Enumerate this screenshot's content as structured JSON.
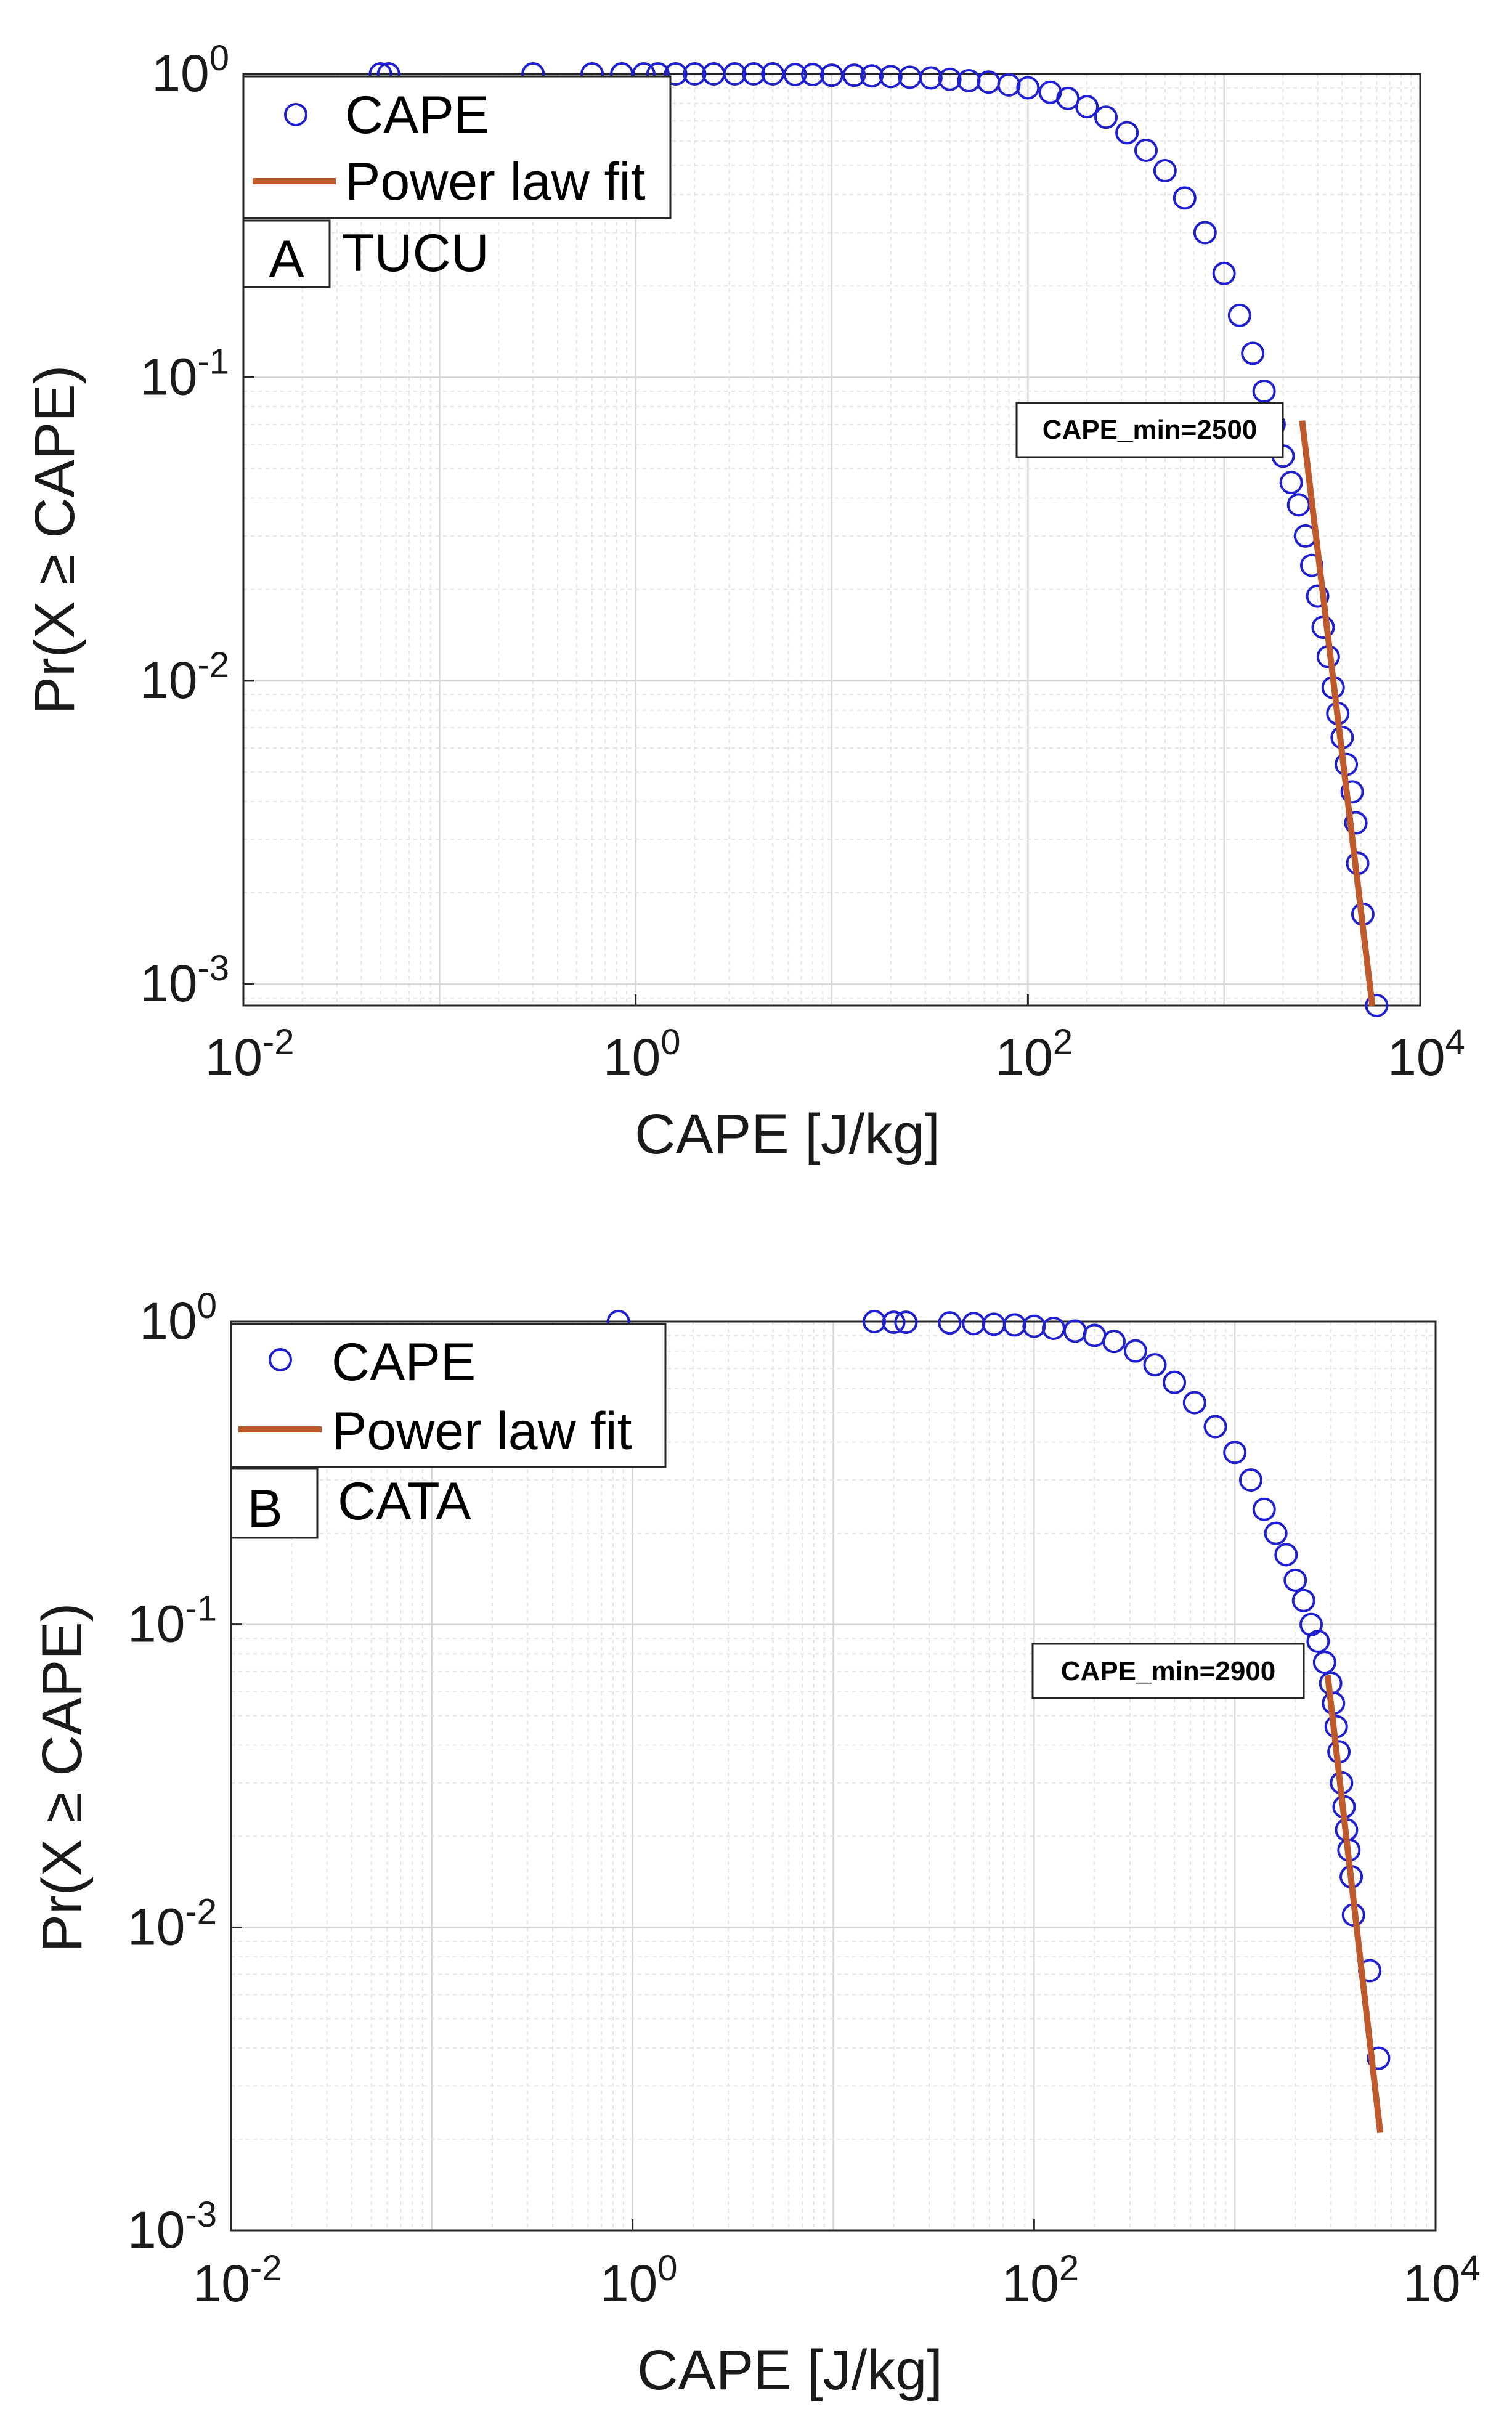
{
  "chart_data": [
    {
      "type": "scatter",
      "panel": "A",
      "station": "TUCU",
      "xlabel": "CAPE [J/kg]",
      "ylabel": "Pr(X ≥ CAPE)",
      "xscale": "log",
      "yscale": "log",
      "xlim": [
        0.01,
        10000
      ],
      "ylim": [
        0.00085,
        1
      ],
      "x_ticks": [
        {
          "base": "10",
          "exp": "-2"
        },
        {
          "base": "10",
          "exp": "0"
        },
        {
          "base": "10",
          "exp": "2"
        },
        {
          "base": "10",
          "exp": "4"
        }
      ],
      "y_ticks": [
        {
          "base": "10",
          "exp": "0",
          "value": 1
        },
        {
          "base": "10",
          "exp": "-1",
          "value": 0.1
        },
        {
          "base": "10",
          "exp": "-2",
          "value": 0.01
        },
        {
          "base": "10",
          "exp": "-3",
          "value": 0.001
        }
      ],
      "grid": true,
      "legend": {
        "position": "top-left",
        "entries": [
          "CAPE",
          "Power law fit"
        ]
      },
      "annotation": "CAPE_min=2500",
      "series": [
        {
          "name": "CAPE",
          "kind": "markers",
          "color": "#1f1fd0",
          "points": [
            [
              0.05,
              1.0
            ],
            [
              0.055,
              1.0
            ],
            [
              0.3,
              1.0
            ],
            [
              0.6,
              1.0
            ],
            [
              0.85,
              1.0
            ],
            [
              1.1,
              1.0
            ],
            [
              1.3,
              1.0
            ],
            [
              1.6,
              1.0
            ],
            [
              2.0,
              1.0
            ],
            [
              2.5,
              1.0
            ],
            [
              3.2,
              1.0
            ],
            [
              4.0,
              1.0
            ],
            [
              5.0,
              1.0
            ],
            [
              6.5,
              0.995
            ],
            [
              8,
              0.995
            ],
            [
              10,
              0.99
            ],
            [
              13,
              0.99
            ],
            [
              16,
              0.985
            ],
            [
              20,
              0.98
            ],
            [
              25,
              0.975
            ],
            [
              32,
              0.97
            ],
            [
              40,
              0.96
            ],
            [
              50,
              0.95
            ],
            [
              63,
              0.94
            ],
            [
              80,
              0.92
            ],
            [
              100,
              0.9
            ],
            [
              130,
              0.87
            ],
            [
              160,
              0.83
            ],
            [
              200,
              0.78
            ],
            [
              250,
              0.72
            ],
            [
              320,
              0.64
            ],
            [
              400,
              0.56
            ],
            [
              500,
              0.48
            ],
            [
              630,
              0.39
            ],
            [
              800,
              0.3
            ],
            [
              1000,
              0.22
            ],
            [
              1200,
              0.16
            ],
            [
              1400,
              0.12
            ],
            [
              1600,
              0.09
            ],
            [
              1800,
              0.07
            ],
            [
              2000,
              0.055
            ],
            [
              2200,
              0.045
            ],
            [
              2400,
              0.038
            ],
            [
              2600,
              0.03
            ],
            [
              2800,
              0.024
            ],
            [
              3000,
              0.019
            ],
            [
              3200,
              0.015
            ],
            [
              3400,
              0.012
            ],
            [
              3600,
              0.0095
            ],
            [
              3800,
              0.0078
            ],
            [
              4000,
              0.0065
            ],
            [
              4200,
              0.0053
            ],
            [
              4500,
              0.0043
            ],
            [
              4700,
              0.0034
            ],
            [
              4800,
              0.0025
            ],
            [
              5100,
              0.0017
            ],
            [
              6000,
              0.00085
            ]
          ]
        },
        {
          "name": "Power law fit",
          "kind": "line",
          "color": "#c0592b",
          "points": [
            [
              2500,
              0.072
            ],
            [
              5700,
              0.00085
            ]
          ]
        }
      ]
    },
    {
      "type": "scatter",
      "panel": "B",
      "station": "CATA",
      "xlabel": "CAPE [J/kg]",
      "ylabel": "Pr(X ≥ CAPE)",
      "xscale": "log",
      "yscale": "log",
      "xlim": [
        0.01,
        10000
      ],
      "ylim": [
        0.001,
        1
      ],
      "x_ticks": [
        {
          "base": "10",
          "exp": "-2"
        },
        {
          "base": "10",
          "exp": "0"
        },
        {
          "base": "10",
          "exp": "2"
        },
        {
          "base": "10",
          "exp": "4"
        }
      ],
      "y_ticks": [
        {
          "base": "10",
          "exp": "0",
          "value": 1
        },
        {
          "base": "10",
          "exp": "-1",
          "value": 0.1
        },
        {
          "base": "10",
          "exp": "-2",
          "value": 0.01
        },
        {
          "base": "10",
          "exp": "-3",
          "value": 0.001
        }
      ],
      "grid": true,
      "legend": {
        "position": "top-left",
        "entries": [
          "CAPE",
          "Power law fit"
        ]
      },
      "annotation": "CAPE_min=2900",
      "series": [
        {
          "name": "CAPE",
          "kind": "markers",
          "color": "#1f1fd0",
          "points": [
            [
              0.85,
              1.0
            ],
            [
              16,
              1.0
            ],
            [
              20,
              0.995
            ],
            [
              23,
              0.995
            ],
            [
              38,
              0.99
            ],
            [
              50,
              0.985
            ],
            [
              63,
              0.98
            ],
            [
              80,
              0.975
            ],
            [
              100,
              0.965
            ],
            [
              125,
              0.95
            ],
            [
              160,
              0.93
            ],
            [
              200,
              0.9
            ],
            [
              250,
              0.86
            ],
            [
              320,
              0.8
            ],
            [
              400,
              0.72
            ],
            [
              500,
              0.63
            ],
            [
              630,
              0.54
            ],
            [
              800,
              0.45
            ],
            [
              1000,
              0.37
            ],
            [
              1200,
              0.3
            ],
            [
              1400,
              0.24
            ],
            [
              1600,
              0.2
            ],
            [
              1800,
              0.17
            ],
            [
              2000,
              0.14
            ],
            [
              2200,
              0.12
            ],
            [
              2400,
              0.1
            ],
            [
              2600,
              0.088
            ],
            [
              2800,
              0.075
            ],
            [
              3000,
              0.064
            ],
            [
              3100,
              0.055
            ],
            [
              3200,
              0.046
            ],
            [
              3300,
              0.038
            ],
            [
              3400,
              0.03
            ],
            [
              3500,
              0.025
            ],
            [
              3600,
              0.021
            ],
            [
              3700,
              0.018
            ],
            [
              3800,
              0.0147
            ],
            [
              3900,
              0.011
            ],
            [
              4700,
              0.0072
            ],
            [
              5200,
              0.0037
            ]
          ]
        },
        {
          "name": "Power law fit",
          "kind": "line",
          "color": "#c0592b",
          "points": [
            [
              2900,
              0.068
            ],
            [
              5300,
              0.0021
            ]
          ]
        }
      ]
    }
  ]
}
